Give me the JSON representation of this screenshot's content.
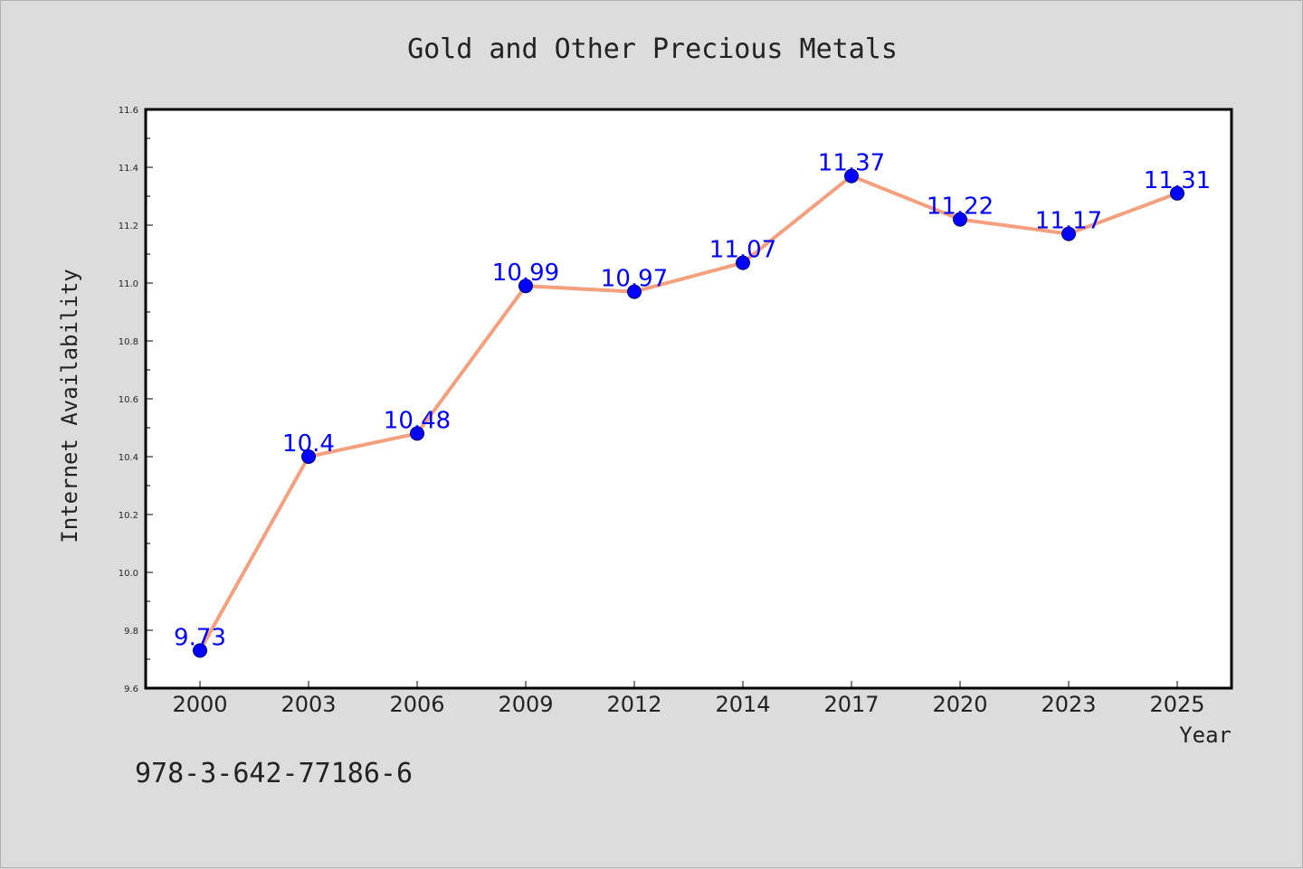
{
  "chart_data": {
    "type": "line",
    "title": "Gold and Other Precious Metals",
    "xlabel": "Year",
    "ylabel": "Internet Availability",
    "categories": [
      "2000",
      "2003",
      "2006",
      "2009",
      "2012",
      "2014",
      "2017",
      "2020",
      "2023",
      "2025"
    ],
    "series": [
      {
        "values": [
          9.73,
          10.4,
          10.48,
          10.99,
          10.97,
          11.07,
          11.37,
          11.22,
          11.17,
          11.31
        ],
        "data_labels": [
          "9.73",
          "10.4",
          "10.48",
          "10.99",
          "10.97",
          "11.07",
          "11.37",
          "11.22",
          "11.17",
          "11.31"
        ]
      }
    ],
    "ylim": [
      9.6,
      11.6
    ],
    "yticks": [
      "9.6",
      "9.8",
      "10.0",
      "10.2",
      "10.4",
      "10.6",
      "10.8",
      "11.0",
      "11.2",
      "11.4",
      "11.6"
    ],
    "grid": false,
    "colors": {
      "line": "#f4a07e",
      "marker": "#0000ff",
      "marker_edge": "#000066",
      "data_label": "#0000ff",
      "background": "#dcdcdc",
      "plot_background": "#ffffff"
    }
  },
  "footer": {
    "isbn": "978-3-642-77186-6"
  }
}
